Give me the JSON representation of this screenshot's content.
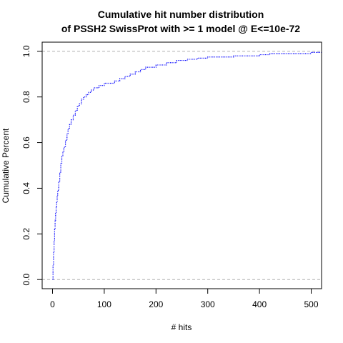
{
  "chart_data": {
    "type": "line",
    "title_line1": "Cumulative hit number distribution",
    "title_line2": "of PSSH2 SwissProt with >= 1 model @ E<=10e-72",
    "xlabel": "# hits",
    "ylabel": "Cumulative Percent",
    "xlim": [
      -20,
      520
    ],
    "ylim": [
      -0.04,
      1.04
    ],
    "x_ticks": [
      0,
      100,
      200,
      300,
      400,
      500
    ],
    "x_tick_labels": [
      "0",
      "100",
      "200",
      "300",
      "400",
      "500"
    ],
    "y_ticks": [
      0.0,
      0.2,
      0.4,
      0.6,
      0.8,
      1.0
    ],
    "y_tick_labels": [
      "0.0",
      "0.2",
      "0.4",
      "0.6",
      "0.8",
      "1.0"
    ],
    "reference_lines": [
      0,
      1
    ],
    "series": [
      {
        "color": "#0000ff",
        "style": "step-dotted",
        "x": [
          0,
          1,
          2,
          3,
          4,
          5,
          6,
          7,
          8,
          9,
          10,
          12,
          14,
          16,
          18,
          20,
          22,
          25,
          28,
          30,
          33,
          36,
          40,
          44,
          48,
          52,
          56,
          60,
          65,
          70,
          75,
          80,
          90,
          100,
          110,
          120,
          130,
          140,
          150,
          160,
          170,
          180,
          200,
          220,
          240,
          260,
          280,
          300,
          350,
          400,
          420,
          450,
          500,
          520
        ],
        "y": [
          0.0,
          0.06,
          0.12,
          0.17,
          0.22,
          0.26,
          0.29,
          0.32,
          0.34,
          0.37,
          0.39,
          0.43,
          0.47,
          0.51,
          0.54,
          0.56,
          0.58,
          0.61,
          0.64,
          0.66,
          0.68,
          0.7,
          0.72,
          0.74,
          0.76,
          0.77,
          0.79,
          0.8,
          0.81,
          0.82,
          0.83,
          0.84,
          0.85,
          0.86,
          0.86,
          0.87,
          0.88,
          0.89,
          0.9,
          0.91,
          0.92,
          0.93,
          0.94,
          0.95,
          0.96,
          0.965,
          0.97,
          0.975,
          0.98,
          0.985,
          0.99,
          0.99,
          0.995,
          0.995
        ]
      }
    ],
    "grid": false
  }
}
